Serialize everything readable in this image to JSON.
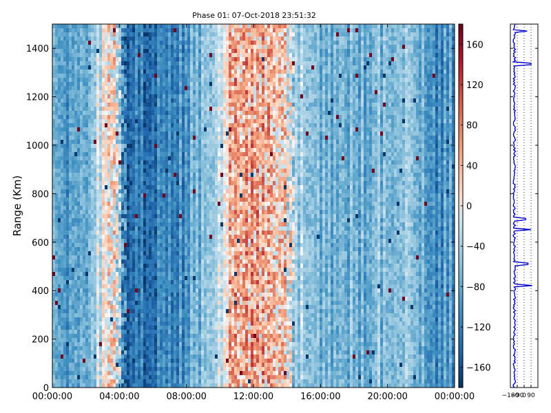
{
  "chart_data": [
    {
      "type": "heatmap",
      "title": "Phase 01: 07-Oct-2018 23:51:32",
      "ylabel": "Range (Km)",
      "xlabel": "",
      "x_ticks": [
        "00:00:00",
        "04:00:00",
        "08:00:00",
        "12:00:00",
        "16:00:00",
        "20:00:00",
        "00:00:00"
      ],
      "x_range_hours": [
        0,
        24
      ],
      "y_ticks": [
        0,
        200,
        400,
        600,
        800,
        1000,
        1200,
        1400
      ],
      "ylim": [
        0,
        1500
      ],
      "value_range": [
        -180,
        180
      ],
      "colormap": "RdBu_r",
      "colorbar": {
        "ticks": [
          -160,
          -120,
          -80,
          -40,
          0,
          40,
          80,
          120,
          160
        ],
        "labels": [
          "−160",
          "−120",
          "−80",
          "−40",
          "0",
          "40",
          "80",
          "120",
          "160"
        ]
      },
      "column_profile": [
        {
          "hour": 0.0,
          "phase": -100
        },
        {
          "hour": 2.0,
          "phase": -95
        },
        {
          "hour": 3.5,
          "phase": 20
        },
        {
          "hour": 4.0,
          "phase": -60
        },
        {
          "hour": 4.5,
          "phase": -150
        },
        {
          "hour": 6.0,
          "phase": -140
        },
        {
          "hour": 8.0,
          "phase": -110
        },
        {
          "hour": 10.0,
          "phase": -40
        },
        {
          "hour": 10.5,
          "phase": 20
        },
        {
          "hour": 12.0,
          "phase": 40
        },
        {
          "hour": 14.0,
          "phase": 10
        },
        {
          "hour": 14.5,
          "phase": -60
        },
        {
          "hour": 18.0,
          "phase": -90
        },
        {
          "hour": 21.5,
          "phase": -60
        },
        {
          "hour": 22.5,
          "phase": -120
        },
        {
          "hour": 24.0,
          "phase": -110
        }
      ]
    },
    {
      "type": "line",
      "title": "",
      "xlabel": "",
      "ylabel": "",
      "x_ticks": [
        "−180",
        "−90",
        "0",
        "90"
      ],
      "xlim": [
        -180,
        180
      ],
      "ylim": [
        0,
        1500
      ],
      "gridlines_x": [
        -90,
        0,
        90
      ],
      "line_color": "#0000cc",
      "spikes": [
        {
          "range": 1470,
          "phase": 40
        },
        {
          "range": 1335,
          "phase": 90
        },
        {
          "range": 695,
          "phase": 20
        },
        {
          "range": 650,
          "phase": 90
        },
        {
          "range": 510,
          "phase": 50
        },
        {
          "range": 420,
          "phase": 105
        }
      ]
    }
  ]
}
